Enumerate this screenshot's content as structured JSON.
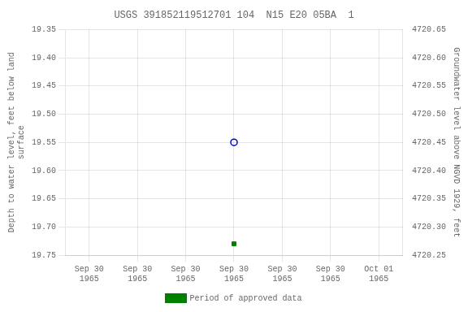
{
  "chart_data": {
    "type": "scatter",
    "title": "USGS 391852119512701 104  N15 E20 05BA  1",
    "y_label": "Depth to water level, feet below land\nsurface",
    "y2_label": "Groundwater level above NGVD 1929, feet",
    "categories": [
      "Sep 30\n1965",
      "Sep 30\n1965",
      "Sep 30\n1965",
      "Sep 30\n1965",
      "Sep 30\n1965",
      "Sep 30\n1965",
      "Oct 01\n1965"
    ],
    "series": [
      {
        "color": "#0000cc",
        "marker": "open_circle",
        "values": [
          null,
          null,
          null,
          19.55,
          null,
          null,
          null
        ]
      },
      {
        "name": "Period of approved data",
        "color": "#008000",
        "marker": "square",
        "values": [
          null,
          null,
          null,
          19.73,
          null,
          null,
          null
        ]
      }
    ],
    "ylim": [
      19.75,
      19.35
    ],
    "yticks": [
      19.35,
      {
        "value": 19.4,
        "label": "19.40"
      },
      19.45,
      {
        "value": 19.5,
        "label": "19.50"
      },
      19.55,
      {
        "value": 19.6,
        "label": "19.60"
      },
      19.65,
      {
        "value": 19.7,
        "label": "19.70"
      },
      19.75
    ],
    "y2lim": [
      4720.25,
      4720.65
    ],
    "y2ticks": [
      4720.65,
      {
        "value": 4720.6,
        "label": "4720.60"
      },
      4720.55,
      {
        "value": 4720.5,
        "label": "4720.50"
      },
      4720.45,
      {
        "value": 4720.4,
        "label": "4720.40"
      },
      4720.35,
      {
        "value": 4720.3,
        "label": "4720.30"
      },
      4720.25
    ],
    "grid": true,
    "legend": "bottom"
  }
}
